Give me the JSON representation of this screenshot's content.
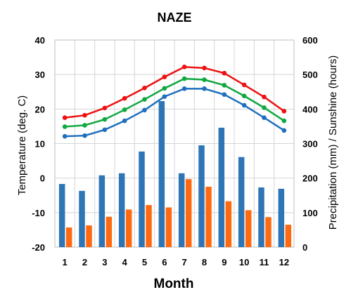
{
  "chart_data": {
    "type": "bar+line",
    "title": "NAZE",
    "xlabel": "Month",
    "ylabel_left": "Temperature (deg. C)",
    "ylabel_right": "Precipitation (mm) / Sunshine (hours)",
    "categories": [
      "1",
      "2",
      "3",
      "4",
      "5",
      "6",
      "7",
      "8",
      "9",
      "10",
      "11",
      "12"
    ],
    "ylim_left": [
      -20,
      40
    ],
    "yticks_left": [
      -20,
      -10,
      0,
      10,
      20,
      30,
      40
    ],
    "ylim_right": [
      0,
      600
    ],
    "yticks_right": [
      0,
      100,
      200,
      300,
      400,
      500,
      600
    ],
    "grid": true,
    "legend": "none",
    "line_series": [
      {
        "axis": "left",
        "color": "#ee1111",
        "values": [
          17.5,
          18.2,
          20.3,
          23.1,
          26.1,
          29.3,
          32.2,
          31.9,
          30.4,
          27.0,
          23.5,
          19.4
        ]
      },
      {
        "axis": "left",
        "color": "#10a840",
        "values": [
          14.9,
          15.3,
          17.0,
          19.8,
          22.8,
          26.0,
          28.8,
          28.5,
          26.9,
          23.8,
          20.4,
          16.6
        ]
      },
      {
        "axis": "left",
        "color": "#1f6fbe",
        "values": [
          12.1,
          12.3,
          14.0,
          16.6,
          19.7,
          23.6,
          25.9,
          25.9,
          24.2,
          21.1,
          17.5,
          13.8
        ]
      }
    ],
    "bar_series": [
      {
        "axis": "right",
        "color": "#2e75b6",
        "values": [
          183,
          163,
          208,
          214,
          277,
          423,
          214,
          295,
          346,
          261,
          173,
          169
        ]
      },
      {
        "axis": "right",
        "color": "#ff6a10",
        "values": [
          57,
          63,
          88,
          109,
          122,
          115,
          197,
          175,
          133,
          107,
          87,
          65
        ]
      }
    ]
  }
}
